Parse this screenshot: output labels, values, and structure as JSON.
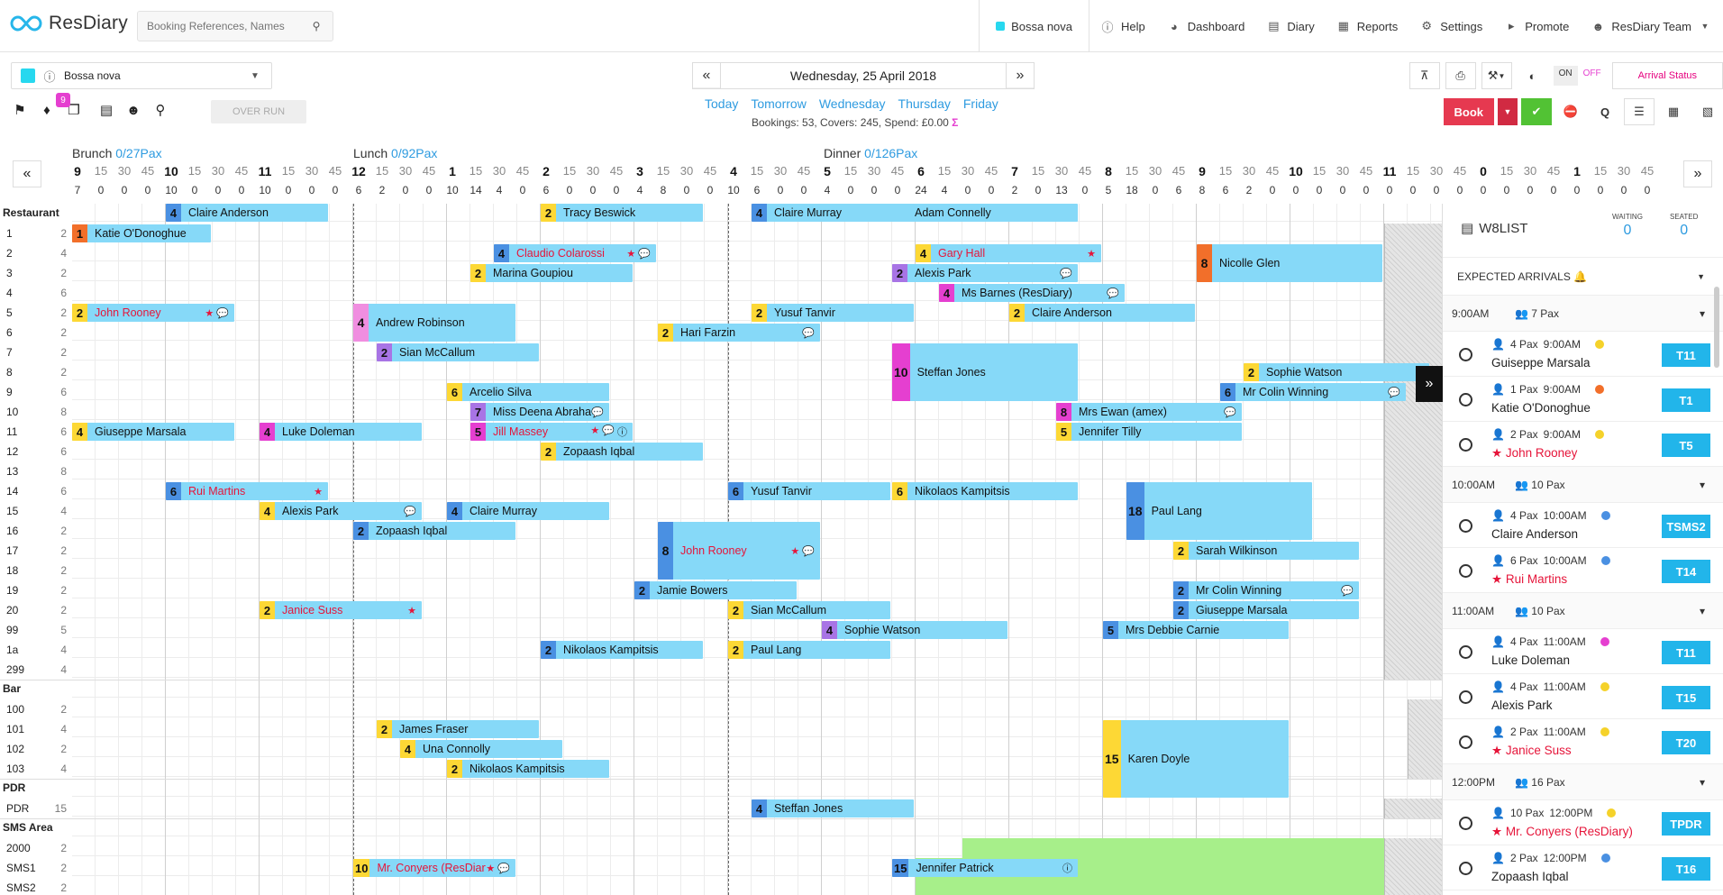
{
  "app": {
    "brand": "ResDiary",
    "search_placeholder": "Booking References, Names"
  },
  "nav": {
    "venue": "Bossa nova",
    "items": [
      {
        "id": "help",
        "label": "Help",
        "icon": "question-icon"
      },
      {
        "id": "dashboard",
        "label": "Dashboard",
        "icon": "dashboard-icon"
      },
      {
        "id": "diary",
        "label": "Diary",
        "icon": "calendar-icon"
      },
      {
        "id": "reports",
        "label": "Reports",
        "icon": "chart-icon"
      },
      {
        "id": "settings",
        "label": "Settings",
        "icon": "gear-icon"
      },
      {
        "id": "promote",
        "label": "Promote",
        "icon": "megaphone-icon"
      },
      {
        "id": "team",
        "label": "ResDiary Team",
        "icon": "user-icon"
      }
    ]
  },
  "toolbar": {
    "venue_select": "Bossa nova",
    "tag_badge": "9",
    "overrun": "OVER RUN",
    "date": "Wednesday, 25 April 2018",
    "days": [
      "Today",
      "Tomorrow",
      "Wednesday",
      "Thursday",
      "Friday"
    ],
    "stats": "Bookings: 53, Covers: 245, Spend: £0.00",
    "on": "ON",
    "off": "OFF",
    "arrival_status": "Arrival Status",
    "book": "Book"
  },
  "sessions": [
    {
      "name": "Brunch",
      "pax": "0/27Pax"
    },
    {
      "name": "Lunch",
      "pax": "0/92Pax"
    },
    {
      "name": "Dinner",
      "pax": "0/126Pax"
    }
  ],
  "hours": [
    "9",
    "10",
    "11",
    "12",
    "1",
    "2",
    "3",
    "4",
    "5",
    "6",
    "7",
    "8",
    "9",
    "10",
    "11",
    "0",
    "1"
  ],
  "quarter_labels": [
    "15",
    "30",
    "45"
  ],
  "counts": [
    7,
    0,
    0,
    0,
    10,
    0,
    0,
    0,
    10,
    0,
    0,
    0,
    6,
    2,
    0,
    0,
    10,
    14,
    4,
    0,
    6,
    0,
    0,
    0,
    4,
    8,
    0,
    0,
    10,
    6,
    0,
    0,
    4,
    0,
    0,
    0,
    24,
    4,
    0,
    0,
    2,
    0,
    13,
    0,
    5,
    18,
    0,
    6,
    8,
    6,
    2,
    0,
    0,
    0,
    0,
    0,
    0,
    0,
    0,
    0,
    0,
    0,
    0,
    0,
    0,
    0,
    0,
    0,
    0,
    0,
    0,
    0
  ],
  "sections": [
    {
      "name": "Restaurant",
      "rows": [
        [
          "1",
          "2"
        ],
        [
          "2",
          "4"
        ],
        [
          "3",
          "2"
        ],
        [
          "4",
          "6"
        ],
        [
          "5",
          "2"
        ],
        [
          "6",
          "2"
        ],
        [
          "7",
          "2"
        ],
        [
          "8",
          "2"
        ],
        [
          "9",
          "6"
        ],
        [
          "10",
          "8"
        ],
        [
          "11",
          "6"
        ],
        [
          "12",
          "6"
        ],
        [
          "13",
          "8"
        ],
        [
          "14",
          "6"
        ],
        [
          "15",
          "4"
        ],
        [
          "16",
          "2"
        ],
        [
          "17",
          "2"
        ],
        [
          "18",
          "2"
        ],
        [
          "19",
          "2"
        ],
        [
          "20",
          "2"
        ],
        [
          "99",
          "5"
        ],
        [
          "1a",
          "4"
        ],
        [
          "299",
          "4"
        ]
      ]
    },
    {
      "name": "Bar",
      "rows": [
        [
          "100",
          "2"
        ],
        [
          "101",
          "4"
        ],
        [
          "102",
          "2"
        ],
        [
          "103",
          "4"
        ]
      ]
    },
    {
      "name": "PDR",
      "rows": [
        [
          "PDR",
          "15"
        ]
      ]
    },
    {
      "name": "SMS Area",
      "rows": [
        [
          "2000",
          "2"
        ],
        [
          "SMS1",
          "2"
        ],
        [
          "SMS2",
          "2"
        ]
      ]
    }
  ],
  "bookings": [
    {
      "r": 0,
      "s": 0,
      "d": 6,
      "c": "1",
      "col": "o",
      "n": "Katie O'Donoghue"
    },
    {
      "r": 1,
      "s": 18,
      "d": 7,
      "c": "4",
      "col": "b",
      "n": "Claudio Colarossi",
      "red": true,
      "f": [
        "star",
        "bubble"
      ]
    },
    {
      "r": 1,
      "s": 36,
      "d": 8,
      "c": "4",
      "col": "y",
      "n": "Gary Hall",
      "red": true,
      "f": [
        "star"
      ]
    },
    {
      "r": 1,
      "s": 48,
      "d": 8,
      "c": "8",
      "col": "o",
      "n": "Nicolle Glen",
      "h": 2
    },
    {
      "r": 2,
      "s": 17,
      "d": 7,
      "c": "2",
      "col": "y",
      "n": "Marina Goupiou"
    },
    {
      "r": 2,
      "s": 35,
      "d": 8,
      "c": "2",
      "col": "p",
      "n": "Alexis Park",
      "f": [
        "bubble"
      ]
    },
    {
      "r": 3,
      "s": 37,
      "d": 8,
      "c": "4",
      "col": "m",
      "n": "Ms Barnes (ResDiary)",
      "f": [
        "bubble"
      ]
    },
    {
      "r": 4,
      "s": 0,
      "d": 7,
      "c": "2",
      "col": "y",
      "n": "John Rooney",
      "red": true,
      "f": [
        "star",
        "bubble"
      ]
    },
    {
      "r": 4,
      "s": 12,
      "d": 7,
      "c": "4",
      "col": "pk",
      "n": "Andrew Robinson",
      "h": 2
    },
    {
      "r": 4,
      "s": 29,
      "d": 7,
      "c": "2",
      "col": "y",
      "n": "Yusuf Tanvir"
    },
    {
      "r": 4,
      "s": 40,
      "d": 8,
      "c": "2",
      "col": "y",
      "n": "Claire Anderson"
    },
    {
      "r": 5,
      "s": 25,
      "d": 7,
      "c": "2",
      "col": "y",
      "n": "Hari Farzin",
      "f": [
        "bubble"
      ]
    },
    {
      "r": 6,
      "s": 13,
      "d": 7,
      "c": "2",
      "col": "p",
      "n": "Sian McCallum"
    },
    {
      "r": 6,
      "s": 35,
      "d": 8,
      "c": "10",
      "col": "m",
      "n": "Steffan Jones",
      "h": 3
    },
    {
      "r": 7,
      "s": 50,
      "d": 8,
      "c": "2",
      "col": "y",
      "n": "Sophie Watson"
    },
    {
      "r": 8,
      "s": 16,
      "d": 7,
      "c": "6",
      "col": "y",
      "n": "Arcelio Silva"
    },
    {
      "r": 8,
      "s": 49,
      "d": 8,
      "c": "6",
      "col": "b",
      "n": "Mr Colin Winning",
      "f": [
        "bubble"
      ]
    },
    {
      "r": 9,
      "s": 17,
      "d": 6,
      "c": "7",
      "col": "p",
      "n": "Miss Deena Abraham",
      "f": [
        "bubble"
      ]
    },
    {
      "r": 9,
      "s": 42,
      "d": 8,
      "c": "8",
      "col": "m",
      "n": "Mrs Ewan (amex)",
      "f": [
        "bubble"
      ]
    },
    {
      "r": 10,
      "s": 0,
      "d": 7,
      "c": "4",
      "col": "y",
      "n": "Giuseppe Marsala"
    },
    {
      "r": 10,
      "s": 8,
      "d": 7,
      "c": "4",
      "col": "m",
      "n": "Luke Doleman"
    },
    {
      "r": 10,
      "s": 17,
      "d": 7,
      "c": "5",
      "col": "m",
      "n": "Jill Massey",
      "red": true,
      "f": [
        "star",
        "bubble",
        "info"
      ]
    },
    {
      "r": 10,
      "s": 42,
      "d": 8,
      "c": "5",
      "col": "y",
      "n": "Jennifer Tilly"
    },
    {
      "r": 11,
      "s": 20,
      "d": 7,
      "c": "2",
      "col": "y",
      "n": "Zopaash Iqbal"
    },
    {
      "r": 13,
      "s": 4,
      "d": 7,
      "c": "6",
      "col": "b",
      "n": "Rui Martins",
      "red": true,
      "f": [
        "star"
      ]
    },
    {
      "r": 13,
      "s": 28,
      "d": 7,
      "c": "6",
      "col": "b",
      "n": "Yusuf Tanvir"
    },
    {
      "r": 13,
      "s": 35,
      "d": 8,
      "c": "6",
      "col": "y",
      "n": "Nikolaos Kampitsis"
    },
    {
      "r": 13,
      "s": 45,
      "d": 8,
      "c": "18",
      "col": "b",
      "n": "Paul Lang",
      "h": 3
    },
    {
      "r": 14,
      "s": 8,
      "d": 7,
      "c": "4",
      "col": "y",
      "n": "Alexis Park",
      "f": [
        "bubble"
      ]
    },
    {
      "r": 14,
      "s": 16,
      "d": 7,
      "c": "4",
      "col": "b",
      "n": "Claire Murray"
    },
    {
      "r": 15,
      "s": 12,
      "d": 7,
      "c": "2",
      "col": "b",
      "n": "Zopaash Iqbal"
    },
    {
      "r": 15,
      "s": 25,
      "d": 7,
      "c": "8",
      "col": "b",
      "n": "John Rooney",
      "red": true,
      "f": [
        "star",
        "bubble"
      ],
      "h": 3
    },
    {
      "r": 16,
      "s": 47,
      "d": 8,
      "c": "2",
      "col": "y",
      "n": "Sarah Wilkinson"
    },
    {
      "r": 17,
      "s": 0,
      "d": 0,
      "c": "",
      "col": "y",
      "n": ""
    },
    {
      "r": 18,
      "s": 24,
      "d": 7,
      "c": "2",
      "col": "b",
      "n": "Jamie Bowers"
    },
    {
      "r": 18,
      "s": 47,
      "d": 8,
      "c": "2",
      "col": "b",
      "n": "Mr Colin Winning",
      "f": [
        "bubble"
      ]
    },
    {
      "r": 19,
      "s": 8,
      "d": 7,
      "c": "2",
      "col": "y",
      "n": "Janice Suss",
      "red": true,
      "f": [
        "star"
      ]
    },
    {
      "r": 19,
      "s": 28,
      "d": 7,
      "c": "2",
      "col": "y",
      "n": "Sian McCallum"
    },
    {
      "r": 19,
      "s": 47,
      "d": 8,
      "c": "2",
      "col": "b",
      "n": "Giuseppe Marsala"
    },
    {
      "r": 20,
      "s": 32,
      "d": 8,
      "c": "4",
      "col": "p",
      "n": "Sophie Watson"
    },
    {
      "r": 20,
      "s": 44,
      "d": 8,
      "c": "5",
      "col": "b",
      "n": "Mrs Debbie Carnie"
    },
    {
      "r": 21,
      "s": 20,
      "d": 7,
      "c": "2",
      "col": "b",
      "n": "Nikolaos Kampitsis"
    },
    {
      "r": 21,
      "s": 28,
      "d": 7,
      "c": "2",
      "col": "y",
      "n": "Paul Lang"
    },
    {
      "r": 24,
      "s": 13,
      "d": 7,
      "c": "2",
      "col": "y",
      "n": "James Fraser"
    },
    {
      "r": 24,
      "s": 44,
      "d": 8,
      "c": "15",
      "col": "y",
      "n": "Karen Doyle",
      "h": 4
    },
    {
      "r": 25,
      "s": 14,
      "d": 7,
      "c": "4",
      "col": "y",
      "n": "Una Connolly"
    },
    {
      "r": 26,
      "s": 16,
      "d": 7,
      "c": "2",
      "col": "y",
      "n": "Nikolaos Kampitsis"
    },
    {
      "r": 27,
      "s": 29,
      "d": 7,
      "c": "4",
      "col": "b",
      "n": "Steffan Jones"
    },
    {
      "r": 29,
      "s": 12,
      "d": 7,
      "c": "10",
      "col": "y",
      "n": "Mr. Conyers (ResDiary)",
      "red": true,
      "f": [
        "star",
        "bubble"
      ]
    },
    {
      "r": 29,
      "s": 35,
      "d": 8,
      "c": "15",
      "col": "b",
      "n": "Jennifer Patrick",
      "f": [
        "info"
      ]
    },
    {
      "r": 31,
      "s": 35,
      "d": 8,
      "c": "6",
      "col": "b",
      "n": "Adam Connelly"
    },
    {
      "r": 32,
      "s": 20,
      "d": 7,
      "c": "2",
      "col": "y",
      "n": "Tracy Beswick"
    },
    {
      "r": 32,
      "s": 29,
      "d": 7,
      "c": "4",
      "col": "b",
      "n": "Claire Murray"
    },
    {
      "r": 33,
      "s": 4,
      "d": 7,
      "c": "4",
      "col": "b",
      "n": "Claire Anderson"
    }
  ],
  "waitlist": {
    "title": "W8LIST",
    "waiting_label": "WAITING",
    "waiting": "0",
    "seated_label": "SEATED",
    "seated": "0",
    "expected": "EXPECTED ARRIVALS"
  },
  "arrivals": [
    {
      "slot": "9:00AM",
      "pax": "7 Pax",
      "items": [
        {
          "pax": "4 Pax",
          "time": "9:00AM",
          "name": "Guiseppe Marsala",
          "dot": "#f5d22a",
          "table": "T11"
        },
        {
          "pax": "1 Pax",
          "time": "9:00AM",
          "name": "Katie O'Donoghue",
          "dot": "#f26f2a",
          "table": "T1"
        },
        {
          "pax": "2 Pax",
          "time": "9:00AM",
          "name": "John Rooney",
          "dot": "#f5d22a",
          "table": "T5",
          "red": true
        }
      ]
    },
    {
      "slot": "10:00AM",
      "pax": "10 Pax",
      "items": [
        {
          "pax": "4 Pax",
          "time": "10:00AM",
          "name": "Claire Anderson",
          "dot": "#4a90e2",
          "table": "TSMS2"
        },
        {
          "pax": "6 Pax",
          "time": "10:00AM",
          "name": "Rui Martins",
          "dot": "#4a90e2",
          "table": "T14",
          "red": true
        }
      ]
    },
    {
      "slot": "11:00AM",
      "pax": "10 Pax",
      "items": [
        {
          "pax": "4 Pax",
          "time": "11:00AM",
          "name": "Luke Doleman",
          "dot": "#e53fd0",
          "table": "T11"
        },
        {
          "pax": "4 Pax",
          "time": "11:00AM",
          "name": "Alexis Park",
          "dot": "#f5d22a",
          "table": "T15"
        },
        {
          "pax": "2 Pax",
          "time": "11:00AM",
          "name": "Janice Suss",
          "dot": "#f5d22a",
          "table": "T20",
          "red": true
        }
      ]
    },
    {
      "slot": "12:00PM",
      "pax": "16 Pax",
      "items": [
        {
          "pax": "10 Pax",
          "time": "12:00PM",
          "name": "Mr. Conyers (ResDiary)",
          "dot": "#f5d22a",
          "table": "TPDR",
          "red": true
        },
        {
          "pax": "2 Pax",
          "time": "12:00PM",
          "name": "Zopaash Iqbal",
          "dot": "#4a90e2",
          "table": "T16"
        }
      ]
    }
  ]
}
